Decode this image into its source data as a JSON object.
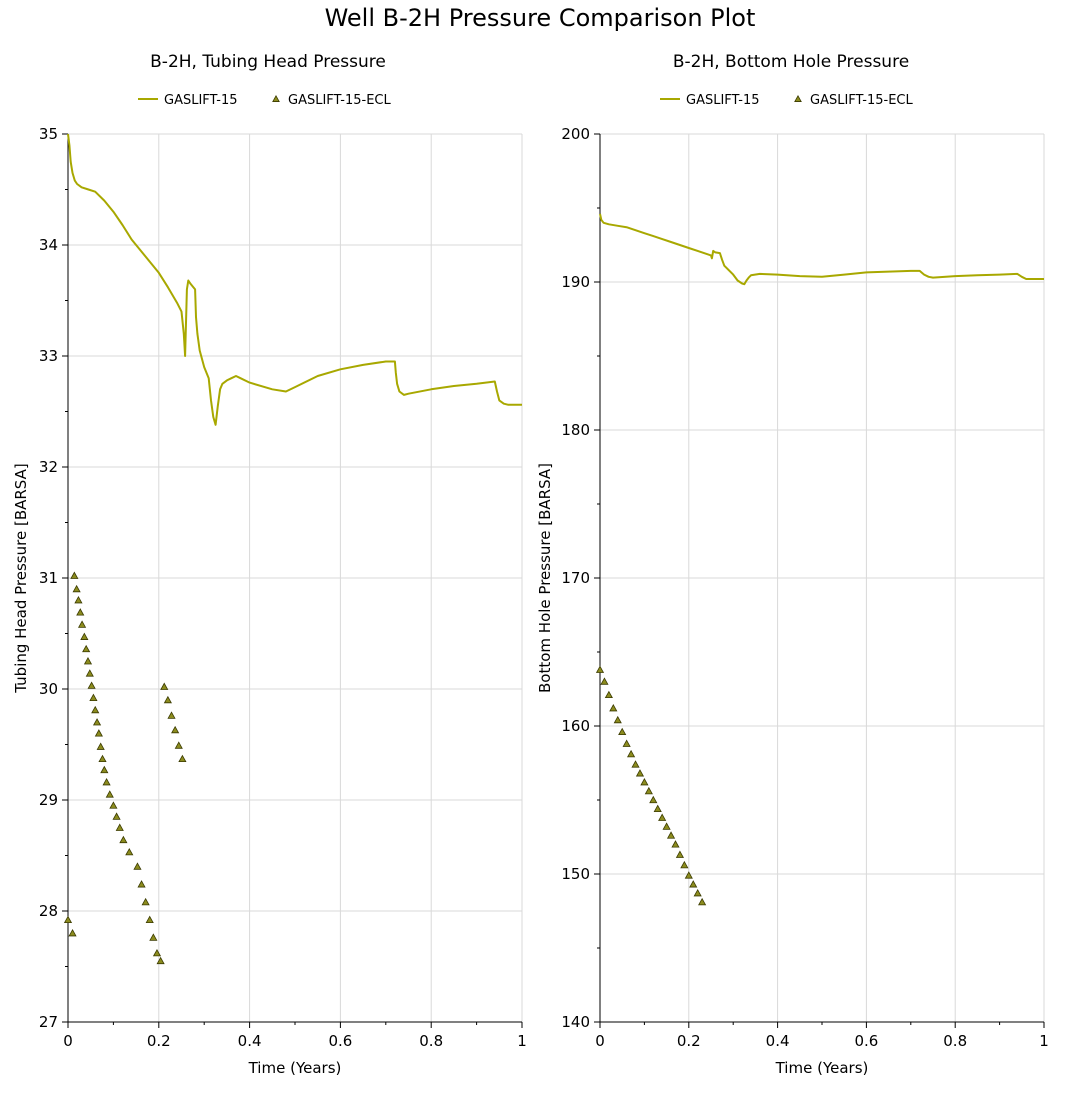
{
  "title": "Well B-2H Pressure Comparison Plot",
  "colors": {
    "line": "#a8a800",
    "marker_fill": "#8c8c1e",
    "marker_stroke": "#3a3a00",
    "grid": "#d9d9d9",
    "axis": "#000000"
  },
  "chart_data": [
    {
      "type": "line",
      "title": "B-2H, Tubing Head Pressure",
      "xlabel": "Time (Years)",
      "ylabel": "Tubing Head Pressure [BARSA]",
      "xlim": [
        0,
        1
      ],
      "ylim": [
        27,
        35
      ],
      "xticks": [
        "0",
        "0.2",
        "0.4",
        "0.6",
        "0.8",
        "1"
      ],
      "yticks": [
        "27",
        "28",
        "29",
        "30",
        "31",
        "32",
        "33",
        "34",
        "35"
      ],
      "grid": true,
      "legend_position": "top",
      "series": [
        {
          "name": "GASLIFT-15",
          "style": "line",
          "x": [
            0,
            0.003,
            0.006,
            0.01,
            0.015,
            0.02,
            0.03,
            0.045,
            0.06,
            0.08,
            0.1,
            0.12,
            0.14,
            0.16,
            0.18,
            0.2,
            0.22,
            0.24,
            0.25,
            0.255,
            0.258,
            0.262,
            0.265,
            0.27,
            0.28,
            0.282,
            0.285,
            0.29,
            0.3,
            0.31,
            0.315,
            0.32,
            0.325,
            0.33,
            0.335,
            0.34,
            0.35,
            0.36,
            0.37,
            0.38,
            0.4,
            0.45,
            0.48,
            0.5,
            0.55,
            0.6,
            0.65,
            0.7,
            0.72,
            0.722,
            0.725,
            0.73,
            0.74,
            0.75,
            0.8,
            0.85,
            0.9,
            0.94,
            0.945,
            0.95,
            0.96,
            0.97,
            1.0
          ],
          "y": [
            35.0,
            34.9,
            34.75,
            34.65,
            34.58,
            34.55,
            34.52,
            34.5,
            34.48,
            34.4,
            34.3,
            34.18,
            34.05,
            33.95,
            33.85,
            33.75,
            33.62,
            33.48,
            33.4,
            33.2,
            33.0,
            33.6,
            33.68,
            33.65,
            33.6,
            33.35,
            33.2,
            33.05,
            32.9,
            32.8,
            32.6,
            32.45,
            32.38,
            32.55,
            32.7,
            32.75,
            32.78,
            32.8,
            32.82,
            32.8,
            32.76,
            32.7,
            32.68,
            32.72,
            32.82,
            32.88,
            32.92,
            32.95,
            32.95,
            32.85,
            32.75,
            32.68,
            32.65,
            32.66,
            32.7,
            32.73,
            32.75,
            32.77,
            32.68,
            32.6,
            32.57,
            32.56,
            32.56
          ]
        },
        {
          "name": "GASLIFT-15-ECL",
          "style": "markers",
          "marker": "triangle",
          "x": [
            0.0,
            0.01,
            0.014,
            0.019,
            0.023,
            0.027,
            0.031,
            0.036,
            0.04,
            0.044,
            0.048,
            0.052,
            0.056,
            0.06,
            0.064,
            0.068,
            0.072,
            0.076,
            0.08,
            0.085,
            0.092,
            0.1,
            0.107,
            0.114,
            0.122,
            0.135,
            0.153,
            0.162,
            0.171,
            0.18,
            0.188,
            0.196,
            0.204,
            0.212,
            0.22,
            0.228,
            0.236,
            0.244,
            0.252
          ],
          "y": [
            27.92,
            27.8,
            31.02,
            30.9,
            30.8,
            30.69,
            30.58,
            30.47,
            30.36,
            30.25,
            30.14,
            30.03,
            29.92,
            29.81,
            29.7,
            29.6,
            29.48,
            29.37,
            29.27,
            29.16,
            29.05,
            28.95,
            28.85,
            28.75,
            28.64,
            28.53,
            28.4,
            28.24,
            28.08,
            27.92,
            27.76,
            27.62,
            27.55,
            30.02,
            29.9,
            29.76,
            29.63,
            29.49,
            29.37
          ]
        }
      ]
    },
    {
      "type": "line",
      "title": "B-2H, Bottom Hole Pressure",
      "xlabel": "Time (Years)",
      "ylabel": "Bottom Hole Pressure [BARSA]",
      "xlim": [
        0,
        1
      ],
      "ylim": [
        140,
        200
      ],
      "xticks": [
        "0",
        "0.2",
        "0.4",
        "0.6",
        "0.8",
        "1"
      ],
      "yticks": [
        "140",
        "150",
        "160",
        "170",
        "180",
        "190",
        "200"
      ],
      "grid": true,
      "legend_position": "top",
      "series": [
        {
          "name": "GASLIFT-15",
          "style": "line",
          "x": [
            0,
            0.003,
            0.008,
            0.02,
            0.04,
            0.06,
            0.08,
            0.1,
            0.12,
            0.14,
            0.16,
            0.18,
            0.2,
            0.22,
            0.24,
            0.25,
            0.252,
            0.255,
            0.26,
            0.27,
            0.275,
            0.28,
            0.29,
            0.3,
            0.31,
            0.32,
            0.325,
            0.33,
            0.335,
            0.34,
            0.36,
            0.4,
            0.45,
            0.5,
            0.55,
            0.6,
            0.65,
            0.7,
            0.72,
            0.73,
            0.74,
            0.75,
            0.8,
            0.85,
            0.9,
            0.94,
            0.95,
            0.96,
            1.0
          ],
          "y": [
            194.6,
            194.2,
            194.0,
            193.9,
            193.8,
            193.7,
            193.5,
            193.3,
            193.1,
            192.9,
            192.7,
            192.5,
            192.3,
            192.1,
            191.9,
            191.8,
            191.6,
            192.1,
            192.0,
            191.95,
            191.5,
            191.1,
            190.8,
            190.5,
            190.1,
            189.9,
            189.85,
            190.1,
            190.3,
            190.45,
            190.55,
            190.5,
            190.4,
            190.35,
            190.5,
            190.65,
            190.7,
            190.75,
            190.75,
            190.5,
            190.35,
            190.3,
            190.4,
            190.45,
            190.5,
            190.55,
            190.35,
            190.2,
            190.2
          ]
        },
        {
          "name": "GASLIFT-15-ECL",
          "style": "markers",
          "marker": "triangle",
          "x": [
            0.0,
            0.01,
            0.02,
            0.03,
            0.04,
            0.05,
            0.06,
            0.07,
            0.08,
            0.09,
            0.1,
            0.11,
            0.12,
            0.13,
            0.14,
            0.15,
            0.16,
            0.17,
            0.18,
            0.19,
            0.2,
            0.21,
            0.22,
            0.23
          ],
          "y": [
            163.8,
            163.0,
            162.1,
            161.2,
            160.4,
            159.6,
            158.8,
            158.1,
            157.4,
            156.8,
            156.2,
            155.6,
            155.0,
            154.4,
            153.8,
            153.2,
            152.6,
            152.0,
            151.3,
            150.6,
            149.9,
            149.3,
            148.7,
            148.1
          ]
        }
      ]
    }
  ]
}
